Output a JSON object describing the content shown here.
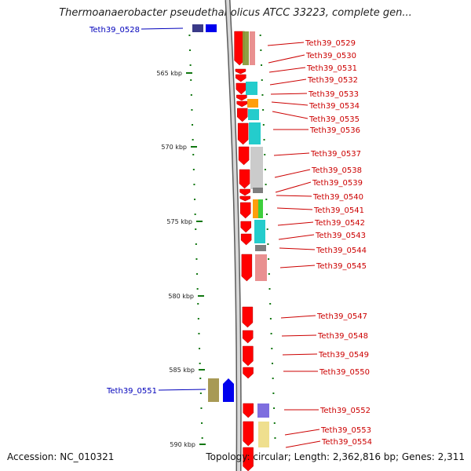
{
  "title": "Thermoanaerobacter pseudethanolicus ATCC 33223, complete gen...",
  "footer": {
    "accession": "Accession: NC_010321",
    "topology": "Topology: circular; Length: 2,362,816 bp; Genes: 2,311"
  },
  "colors": {
    "forward_gene": "#ff0000",
    "reverse_gene": "#0000ee",
    "forward_label": "#cc0000",
    "reverse_label": "#0000bb",
    "backbone": "#888888",
    "ticks": "#117711"
  },
  "scale": {
    "unit": "kbp",
    "tick_labels": [
      "565 kbp",
      "570 kbp",
      "575 kbp",
      "580 kbp",
      "585 kbp",
      "590 kbp"
    ]
  },
  "reverse_genes": [
    "Teth39_0528",
    "Teth39_0551"
  ],
  "forward_genes": [
    "Teth39_0529",
    "Teth39_0530",
    "Teth39_0531",
    "Teth39_0532",
    "Teth39_0533",
    "Teth39_0534",
    "Teth39_0535",
    "Teth39_0536",
    "Teth39_0537",
    "Teth39_0538",
    "Teth39_0539",
    "Teth39_0540",
    "Teth39_0541",
    "Teth39_0542",
    "Teth39_0543",
    "Teth39_0544",
    "Teth39_0545",
    "Teth39_0547",
    "Teth39_0548",
    "Teth39_0549",
    "Teth39_0550",
    "Teth39_0552",
    "Teth39_0553",
    "Teth39_0554"
  ]
}
